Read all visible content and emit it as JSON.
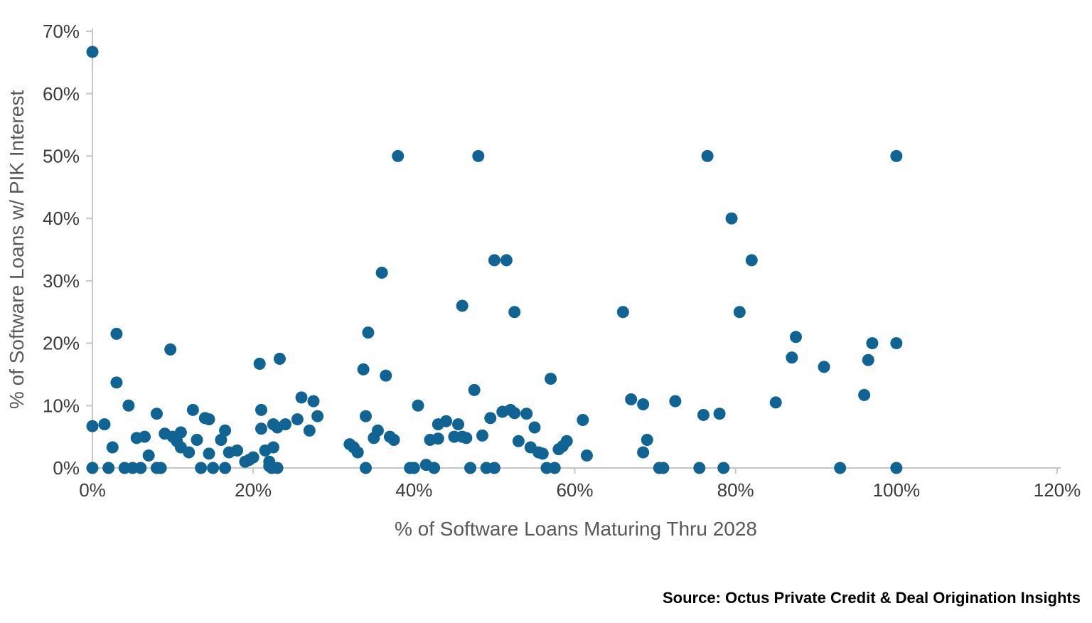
{
  "chart_data": {
    "type": "scatter",
    "title": "",
    "xlabel": "% of Software Loans Maturing Thru 2028",
    "ylabel": "% of Software Loans w/ PIK Interest",
    "xlim": [
      0,
      120
    ],
    "ylim": [
      0,
      70
    ],
    "x_tick_values": [
      0,
      20,
      40,
      60,
      80,
      100,
      120
    ],
    "x_tick_labels": [
      "0%",
      "20%",
      "40%",
      "60%",
      "80%",
      "100%",
      "120%"
    ],
    "y_tick_values": [
      0,
      10,
      20,
      30,
      40,
      50,
      60,
      70
    ],
    "y_tick_labels": [
      "0%",
      "10%",
      "20%",
      "30%",
      "40%",
      "50%",
      "60%",
      "70%"
    ],
    "grid": false,
    "legend": false,
    "point_color": "#0f6493",
    "axis_color": "#c6c6c6",
    "tick_label_color": "#3a3a3a",
    "points": [
      [
        0,
        66.7
      ],
      [
        0,
        6.7
      ],
      [
        1.5,
        7
      ],
      [
        0,
        0
      ],
      [
        2,
        0
      ],
      [
        2.5,
        3.3
      ],
      [
        3,
        21.5
      ],
      [
        3,
        13.7
      ],
      [
        4.5,
        10
      ],
      [
        4,
        0
      ],
      [
        5,
        0
      ],
      [
        5.5,
        4.8
      ],
      [
        6,
        0
      ],
      [
        6.5,
        5
      ],
      [
        7,
        2
      ],
      [
        8,
        8.7
      ],
      [
        8,
        0
      ],
      [
        8.5,
        0
      ],
      [
        9,
        5.5
      ],
      [
        9.7,
        19
      ],
      [
        10,
        5
      ],
      [
        10.5,
        4.3
      ],
      [
        11,
        5.7
      ],
      [
        11,
        3.3
      ],
      [
        12,
        2.5
      ],
      [
        12.5,
        9.3
      ],
      [
        13,
        4.5
      ],
      [
        13.5,
        0
      ],
      [
        14,
        8
      ],
      [
        14.5,
        2.3
      ],
      [
        14.5,
        7.8
      ],
      [
        15,
        0
      ],
      [
        16,
        4.5
      ],
      [
        16.5,
        6
      ],
      [
        16.5,
        0
      ],
      [
        17,
        2.5
      ],
      [
        18,
        2.8
      ],
      [
        19,
        1
      ],
      [
        19.5,
        1.3
      ],
      [
        20,
        1.7
      ],
      [
        20.8,
        16.7
      ],
      [
        21,
        9.3
      ],
      [
        21,
        6.3
      ],
      [
        21.5,
        2.8
      ],
      [
        22,
        1
      ],
      [
        22,
        0.3
      ],
      [
        22.3,
        0
      ],
      [
        22.5,
        3.3
      ],
      [
        22.5,
        7
      ],
      [
        23.3,
        17.5
      ],
      [
        23,
        6.5
      ],
      [
        23,
        0
      ],
      [
        24,
        7
      ],
      [
        25.5,
        7.8
      ],
      [
        26,
        11.3
      ],
      [
        27,
        6
      ],
      [
        27.5,
        10.7
      ],
      [
        28,
        8.3
      ],
      [
        32,
        3.8
      ],
      [
        32.5,
        3.3
      ],
      [
        33,
        2.5
      ],
      [
        33.7,
        15.8
      ],
      [
        34.3,
        21.7
      ],
      [
        34,
        8.3
      ],
      [
        34,
        0
      ],
      [
        35,
        4.8
      ],
      [
        35.5,
        6
      ],
      [
        36,
        31.3
      ],
      [
        36.5,
        14.8
      ],
      [
        37,
        5
      ],
      [
        37.5,
        4.5
      ],
      [
        38,
        50
      ],
      [
        39.5,
        0
      ],
      [
        40,
        0
      ],
      [
        40.5,
        10
      ],
      [
        41.5,
        0.5
      ],
      [
        42,
        4.5
      ],
      [
        42.5,
        0
      ],
      [
        43,
        7
      ],
      [
        43,
        4.7
      ],
      [
        44,
        7.5
      ],
      [
        45,
        5
      ],
      [
        45.5,
        7
      ],
      [
        46,
        26
      ],
      [
        46,
        5
      ],
      [
        46.5,
        4.8
      ],
      [
        47,
        0
      ],
      [
        47.5,
        12.5
      ],
      [
        48,
        50
      ],
      [
        48.5,
        5.2
      ],
      [
        49,
        0
      ],
      [
        49.5,
        8
      ],
      [
        50,
        33.3
      ],
      [
        50,
        0
      ],
      [
        51,
        9
      ],
      [
        51.5,
        33.3
      ],
      [
        52,
        9.3
      ],
      [
        52.5,
        25
      ],
      [
        52.5,
        8.8
      ],
      [
        53,
        4.3
      ],
      [
        54,
        8.7
      ],
      [
        54.5,
        3.3
      ],
      [
        55,
        6.5
      ],
      [
        55.5,
        2.5
      ],
      [
        56,
        2.3
      ],
      [
        56.5,
        0
      ],
      [
        57,
        14.3
      ],
      [
        57.5,
        0
      ],
      [
        58,
        3
      ],
      [
        58.5,
        3.5
      ],
      [
        59,
        4.3
      ],
      [
        61,
        7.7
      ],
      [
        61.5,
        2
      ],
      [
        66,
        25
      ],
      [
        67,
        11
      ],
      [
        68.5,
        10.2
      ],
      [
        68.5,
        2.5
      ],
      [
        69,
        4.5
      ],
      [
        70.5,
        0
      ],
      [
        71,
        0
      ],
      [
        72.5,
        10.7
      ],
      [
        75.5,
        0
      ],
      [
        76,
        8.5
      ],
      [
        76.5,
        50
      ],
      [
        78,
        8.7
      ],
      [
        78.5,
        0
      ],
      [
        79.5,
        40
      ],
      [
        80.5,
        25
      ],
      [
        82,
        33.3
      ],
      [
        85,
        10.5
      ],
      [
        87,
        17.7
      ],
      [
        87.5,
        21
      ],
      [
        91,
        16.2
      ],
      [
        93,
        0
      ],
      [
        96,
        11.7
      ],
      [
        96.5,
        17.3
      ],
      [
        97,
        20
      ],
      [
        100,
        50
      ],
      [
        100,
        20
      ],
      [
        100,
        0
      ]
    ]
  },
  "source": {
    "label": "Source: Octus Private Credit & Deal Origination Insights"
  }
}
